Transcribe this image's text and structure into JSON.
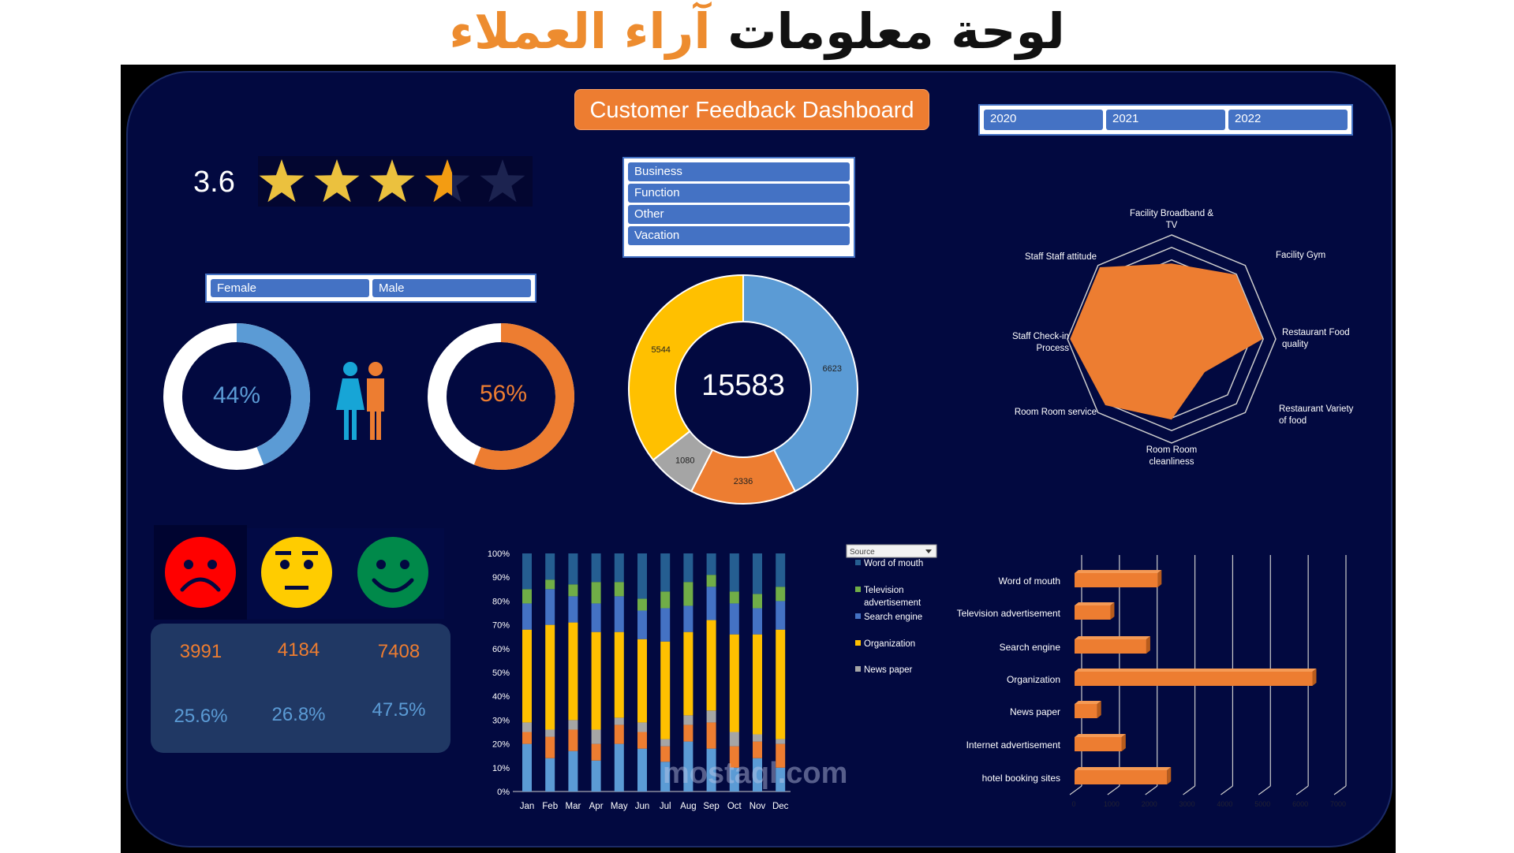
{
  "page_title": {
    "part1": "لوحة معلومات",
    "part2": "آراء العملاء"
  },
  "dashboard_title": "Customer Feedback Dashboard",
  "year_slicer": [
    "2020",
    "2021",
    "2022"
  ],
  "purpose_slicer": [
    "Business",
    "Function",
    "Other",
    "Vacation"
  ],
  "gender_slicer": [
    "Female",
    "Male"
  ],
  "rating": {
    "value": "3.6",
    "stars_filled": 3.6,
    "stars_max": 5
  },
  "gender": {
    "female_pct": "44%",
    "female_value": 0.44,
    "male_pct": "56%",
    "male_value": 0.56
  },
  "colors": {
    "background": "#020940",
    "accent": "#ED7D31",
    "slicer": "#4472C4",
    "female": "#5B9BD5",
    "male": "#ED7D31"
  },
  "purpose_donut": {
    "total": "15583",
    "slices": [
      {
        "value": 6623,
        "color": "#5B9BD5"
      },
      {
        "value": 2336,
        "color": "#ED7D31"
      },
      {
        "value": 1080,
        "color": "#A5A5A5"
      },
      {
        "value": 5544,
        "color": "#FFC000"
      }
    ]
  },
  "sentiment": [
    {
      "icon": "sad-face-icon",
      "count": "3991",
      "pct": "25.6%",
      "color": "#FF0000"
    },
    {
      "icon": "neutral-face-icon",
      "count": "4184",
      "pct": "26.8%",
      "color": "#FFCC00"
    },
    {
      "icon": "happy-face-icon",
      "count": "7408",
      "pct": "47.5%",
      "color": "#00894A"
    }
  ],
  "watermark": "mostaql.com",
  "chart_data": [
    {
      "type": "radar",
      "categories": [
        "Facility Broadband & TV",
        "Facility Gym",
        "Restaurant Food quality",
        "Restaurant Variety of food",
        "Room Room cleanliness",
        "Room Room service",
        "Staff Check-in Process",
        "Staff Staff attitude"
      ],
      "values": [
        2.9,
        3.5,
        3.5,
        1.8,
        3.1,
        3.6,
        3.9,
        3.9
      ],
      "range": [
        0,
        4
      ],
      "color": "#ED7D31"
    },
    {
      "type": "bar",
      "stacked": "percent",
      "categories": [
        "Jan",
        "Feb",
        "Mar",
        "Apr",
        "May",
        "Jun",
        "Jul",
        "Aug",
        "Sep",
        "Oct",
        "Nov",
        "Dec"
      ],
      "yticks": [
        "0%",
        "10%",
        "20%",
        "30%",
        "40%",
        "50%",
        "60%",
        "70%",
        "80%",
        "90%",
        "100%"
      ],
      "legend_title": "Source",
      "series": [
        {
          "color": "#5B9BD5",
          "values": [
            20,
            14,
            17,
            13,
            20,
            18,
            12.5,
            21,
            18,
            10,
            14,
            10
          ]
        },
        {
          "color": "#ED7D31",
          "values": [
            5,
            9,
            9,
            7,
            8,
            7,
            6.5,
            7,
            11,
            9,
            7,
            10
          ]
        },
        {
          "name": "News paper",
          "color": "#A5A5A5",
          "values": [
            4,
            3,
            4,
            6,
            3,
            4,
            3,
            4,
            5,
            6,
            3,
            2
          ]
        },
        {
          "name": "Organization",
          "color": "#FFC000",
          "values": [
            39,
            44,
            41,
            41,
            36,
            35,
            41,
            35,
            38,
            41,
            42,
            46
          ]
        },
        {
          "name": "Search engine",
          "color": "#4472C4",
          "values": [
            11,
            15,
            11,
            12,
            15,
            12,
            14,
            11,
            14,
            13,
            11,
            12
          ]
        },
        {
          "name": "Television advertisement",
          "color": "#70AD47",
          "values": [
            6,
            4,
            5,
            9,
            6,
            5,
            7,
            10,
            5,
            5,
            6,
            6
          ]
        },
        {
          "name": "Word of mouth",
          "color": "#255E91",
          "values": [
            15,
            11,
            13,
            12,
            12,
            19,
            16,
            12,
            9,
            16,
            17,
            14
          ]
        }
      ]
    },
    {
      "type": "bar",
      "orientation": "horizontal",
      "categories": [
        "Word of mouth",
        "Television advertisement",
        "Search engine",
        "Organization",
        "News paper",
        "Internet advertisement",
        "hotel booking sites"
      ],
      "values": [
        2200,
        950,
        1900,
        6300,
        600,
        1250,
        2450
      ],
      "xlim": [
        0,
        7000
      ],
      "xticks": [
        "0",
        "1000",
        "2000",
        "3000",
        "4000",
        "5000",
        "6000",
        "7000"
      ],
      "color": "#ED7D31",
      "grid": true
    }
  ]
}
